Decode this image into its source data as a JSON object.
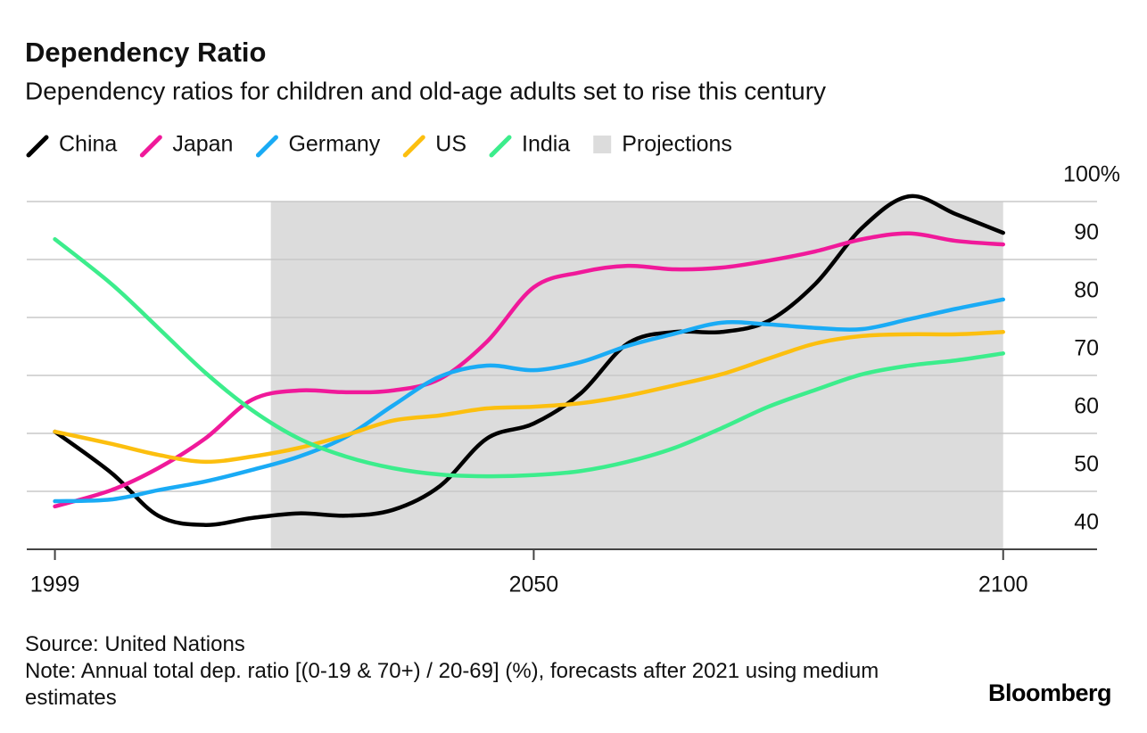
{
  "chart_data": {
    "type": "line",
    "title": "Dependency Ratio",
    "subtitle": "Dependency ratios for children and old-age adults set to rise this century",
    "x": [
      1999,
      2005,
      2010,
      2015,
      2020,
      2025,
      2030,
      2035,
      2040,
      2045,
      2050,
      2055,
      2060,
      2065,
      2070,
      2075,
      2080,
      2085,
      2090,
      2095,
      2100
    ],
    "series": [
      {
        "name": "China",
        "color": "#000000",
        "values": [
          60.3,
          53.2,
          45.8,
          44.2,
          45.4,
          46.2,
          45.8,
          46.8,
          50.9,
          59.1,
          61.7,
          66.9,
          75.5,
          77.5,
          77.5,
          79.4,
          85.8,
          95.5,
          100.9,
          97.8,
          94.6
        ]
      },
      {
        "name": "Japan",
        "color": "#f0199a",
        "values": [
          47.4,
          50.2,
          54.0,
          59.1,
          65.8,
          67.4,
          67.1,
          67.4,
          69.4,
          75.8,
          85.2,
          87.8,
          88.9,
          88.3,
          88.6,
          89.8,
          91.4,
          93.5,
          94.5,
          93.2,
          92.6
        ]
      },
      {
        "name": "Germany",
        "color": "#1aabf5",
        "values": [
          48.3,
          48.6,
          50.2,
          51.7,
          53.7,
          56.0,
          59.4,
          64.8,
          69.8,
          71.7,
          70.9,
          72.3,
          75.1,
          77.2,
          79.1,
          78.8,
          78.2,
          78.0,
          79.7,
          81.5,
          83.1
        ]
      },
      {
        "name": "US",
        "color": "#fcbf0f",
        "values": [
          60.3,
          58.2,
          56.3,
          55.1,
          56.0,
          57.5,
          59.7,
          62.2,
          63.1,
          64.3,
          64.6,
          65.2,
          66.5,
          68.3,
          70.2,
          72.9,
          75.5,
          76.8,
          77.1,
          77.1,
          77.5
        ]
      },
      {
        "name": "India",
        "color": "#3ced8c",
        "values": [
          93.5,
          85.8,
          78.2,
          70.5,
          64.0,
          59.1,
          56.0,
          54.0,
          52.9,
          52.6,
          52.8,
          53.5,
          55.1,
          57.5,
          60.9,
          64.6,
          67.5,
          70.2,
          71.7,
          72.6,
          73.8
        ]
      }
    ],
    "projection_label": "Projections",
    "projection_range": [
      2022,
      2100
    ],
    "projection_color": "#dcdcdc",
    "xlim": [
      1996,
      2110
    ],
    "xticks": [
      1999,
      2050,
      2100
    ],
    "ylim": [
      40,
      100
    ],
    "yticks": [
      40,
      50,
      60,
      70,
      80,
      90,
      {
        "value": 100,
        "label": "100%"
      }
    ],
    "grid": true,
    "source": "Source: United Nations",
    "note": "Note: Annual total dep. ratio [(0-19 & 70+) / 20-69] (%), forecasts after 2021 using medium estimates",
    "brand": "Bloomberg"
  }
}
